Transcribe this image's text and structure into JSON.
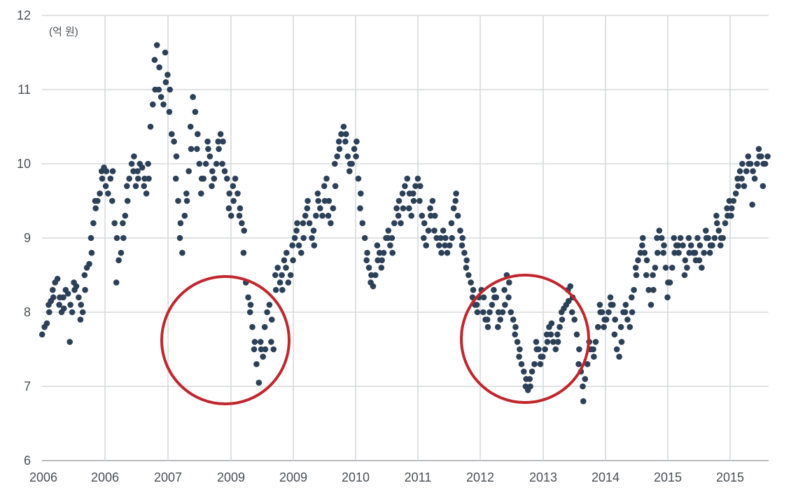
{
  "chart_data": {
    "type": "scatter",
    "unit_label": "(억 원)",
    "ylim": [
      6,
      12
    ],
    "y_ticks": [
      "6",
      "7",
      "8",
      "9",
      "10",
      "11",
      "12"
    ],
    "x_tick_labels": [
      "2006",
      "2006",
      "2007",
      "2009",
      "2009",
      "2010",
      "2011",
      "2012",
      "2013",
      "2014",
      "2015",
      "2015"
    ],
    "grid": "vertical and horizontal",
    "marker_color": "#2c4058",
    "highlight_color": "#c0272d",
    "series": [
      {
        "values": [
          7.7,
          7.8,
          7.85,
          8.0,
          8.1,
          8.15,
          8.2,
          8.3,
          8.4,
          8.45,
          8.2,
          8.1,
          8.0,
          8.05,
          8.2,
          8.3,
          8.25,
          8.1,
          7.6,
          8.0,
          8.3,
          8.4,
          8.35,
          8.2,
          8.1,
          7.9,
          8.0,
          8.3,
          8.5,
          8.6,
          8.65,
          8.8,
          9.0,
          9.2,
          9.4,
          9.5,
          9.5,
          9.6,
          9.8,
          9.9,
          9.95,
          9.9,
          9.7,
          9.6,
          9.8,
          9.9,
          9.5,
          9.2,
          9.0,
          8.4,
          8.7,
          8.8,
          9.0,
          9.2,
          9.3,
          9.5,
          9.7,
          9.8,
          10.0,
          10.1,
          9.9,
          9.7,
          9.8,
          9.9,
          10.0,
          9.95,
          9.8,
          9.7,
          9.6,
          9.8,
          10.0,
          10.5,
          10.8,
          11.0,
          11.4,
          11.6,
          11.3,
          11.0,
          10.9,
          10.8,
          11.1,
          11.5,
          11.2,
          11.0,
          10.7,
          10.4,
          10.3,
          10.1,
          9.8,
          9.5,
          9.2,
          9.0,
          8.8,
          9.3,
          9.5,
          9.6,
          9.9,
          10.2,
          10.5,
          10.9,
          10.7,
          10.4,
          10.2,
          10.0,
          9.8,
          9.6,
          9.8,
          10.0,
          10.2,
          10.3,
          10.1,
          9.9,
          9.7,
          9.8,
          10.0,
          10.2,
          10.3,
          10.4,
          10.3,
          10.0,
          9.9,
          9.8,
          9.6,
          9.4,
          9.3,
          9.5,
          9.7,
          9.8,
          9.6,
          9.4,
          9.3,
          9.2,
          9.1,
          8.8,
          8.4,
          8.2,
          8.1,
          8.0,
          7.8,
          7.6,
          7.5,
          7.3,
          7.05,
          7.5,
          7.6,
          7.4,
          7.5,
          7.8,
          8.0,
          8.1,
          7.9,
          7.6,
          7.5,
          8.3,
          8.5,
          8.6,
          8.4,
          8.3,
          8.5,
          8.7,
          8.8,
          8.6,
          8.4,
          8.5,
          8.7,
          8.9,
          9.0,
          9.2,
          9.1,
          8.9,
          8.8,
          9.0,
          9.2,
          9.3,
          9.5,
          9.4,
          9.2,
          9.0,
          8.9,
          9.1,
          9.3,
          9.5,
          9.6,
          9.4,
          9.3,
          9.5,
          9.7,
          9.8,
          9.5,
          9.3,
          9.2,
          9.4,
          9.7,
          10.0,
          10.1,
          10.2,
          10.3,
          10.4,
          10.5,
          10.4,
          10.3,
          10.1,
          10.0,
          9.9,
          10.0,
          10.2,
          10.3,
          10.1,
          9.8,
          9.6,
          9.4,
          9.2,
          9.0,
          8.8,
          8.7,
          8.6,
          8.5,
          8.4,
          8.35,
          8.5,
          8.7,
          8.9,
          8.8,
          8.7,
          8.6,
          8.8,
          9.0,
          9.1,
          9.0,
          8.9,
          8.8,
          9.0,
          9.2,
          9.4,
          9.5,
          9.3,
          9.2,
          9.4,
          9.6,
          9.7,
          9.8,
          9.6,
          9.4,
          9.3,
          9.5,
          9.6,
          9.7,
          9.8,
          9.7,
          9.5,
          9.3,
          9.2,
          9.0,
          8.9,
          9.1,
          9.3,
          9.4,
          9.5,
          9.3,
          9.1,
          9.0,
          8.9,
          8.8,
          9.0,
          9.1,
          9.0,
          8.9,
          8.8,
          8.9,
          9.0,
          9.2,
          9.4,
          9.6,
          9.5,
          9.3,
          9.1,
          9.0,
          8.9,
          8.8,
          8.7,
          8.6,
          8.5,
          8.4,
          8.3,
          8.2,
          8.1,
          8.0,
          8.1,
          8.2,
          8.3,
          8.2,
          8.0,
          7.9,
          7.8,
          7.9,
          8.0,
          8.1,
          8.2,
          8.3,
          8.2,
          8.0,
          7.8,
          7.9,
          8.0,
          8.1,
          8.3,
          8.5,
          8.4,
          8.2,
          8.0,
          7.9,
          7.8,
          7.7,
          7.6,
          7.5,
          7.4,
          7.3,
          7.2,
          7.1,
          7.0,
          6.95,
          7.0,
          7.1,
          7.2,
          7.3,
          7.5,
          7.6,
          7.5,
          7.4,
          7.3,
          7.4,
          7.5,
          7.6,
          7.7,
          7.8,
          7.85,
          7.7,
          7.6,
          7.5,
          7.6,
          7.7,
          7.8,
          7.9,
          8.0,
          8.05,
          8.1,
          8.15,
          8.3,
          8.35,
          8.2,
          8.0,
          7.9,
          7.7,
          7.5,
          7.3,
          7.2,
          6.8,
          7.0,
          7.1,
          7.3,
          7.5,
          7.6,
          7.5,
          7.4,
          7.5,
          7.6,
          7.8,
          8.0,
          8.1,
          8.0,
          7.9,
          7.8,
          7.9,
          8.0,
          8.1,
          8.2,
          8.1,
          7.9,
          7.7,
          7.5,
          7.4,
          7.6,
          7.8,
          8.0,
          8.1,
          8.0,
          7.9,
          7.8,
          8.0,
          8.2,
          8.3,
          8.5,
          8.6,
          8.7,
          8.8,
          9.0,
          8.9,
          8.8,
          8.7,
          8.5,
          8.3,
          8.1,
          8.3,
          8.5,
          8.6,
          8.8,
          9.0,
          9.1,
          9.0,
          8.9,
          8.8,
          8.6,
          8.4,
          8.2,
          8.4,
          8.6,
          8.8,
          9.0,
          8.9,
          8.8,
          8.9,
          9.0,
          8.9,
          8.7,
          8.5,
          8.6,
          8.8,
          9.0,
          8.9,
          8.8,
          8.7,
          8.8,
          9.0,
          8.9,
          8.7,
          8.6,
          8.8,
          9.0,
          9.1,
          9.0,
          8.9,
          8.8,
          8.9,
          9.0,
          9.2,
          9.3,
          9.1,
          9.0,
          8.9,
          9.0,
          9.2,
          9.3,
          9.4,
          9.5,
          9.4,
          9.3,
          9.5,
          9.6,
          9.7,
          9.8,
          9.9,
          10.0,
          9.8,
          9.7,
          9.9,
          10.0,
          10.1,
          10.0,
          9.9,
          9.45,
          9.8,
          10.0,
          10.1,
          10.2,
          10.1,
          10.0,
          9.7,
          10.0,
          10.1
        ]
      }
    ],
    "highlights": [
      "circle",
      "circle"
    ]
  }
}
